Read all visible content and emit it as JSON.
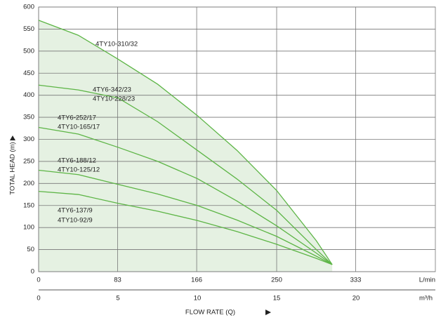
{
  "chart_data": {
    "type": "line",
    "xlabel": "FLOW RATE (Q)",
    "ylabel": "TOTAL HEAD (m)",
    "x_unit": "m³/h",
    "x2_unit": "L/min",
    "xlim": [
      0,
      25
    ],
    "xticks": [
      0,
      5,
      10,
      15,
      20
    ],
    "x2lim": [
      0,
      416.67
    ],
    "x2ticks": [
      0,
      83,
      166,
      250,
      333
    ],
    "ylim": [
      0,
      600
    ],
    "yticks": [
      0,
      50,
      100,
      150,
      200,
      250,
      300,
      350,
      400,
      450,
      500,
      550,
      600
    ],
    "grid": true,
    "area_color": "#e5f1e2",
    "x": [
      0,
      2.5,
      5,
      7.5,
      10,
      12.5,
      15,
      17.5,
      18.5
    ],
    "series": [
      {
        "labels": [
          "4TY10-310/32"
        ],
        "color": "#5db546",
        "values": [
          570,
          536,
          482,
          425,
          354,
          275,
          184,
          70,
          16
        ]
      },
      {
        "labels": [
          "4TY6-342/23",
          "4TY10-228/23"
        ],
        "color": "#5db546",
        "values": [
          423,
          412,
          394,
          340,
          275,
          210,
          139,
          50,
          16
        ]
      },
      {
        "labels": [
          "4TY6-252/17",
          "4TY10-165/17"
        ],
        "color": "#5db546",
        "values": [
          327,
          312,
          282,
          250,
          211,
          160,
          104,
          42,
          16
        ]
      },
      {
        "labels": [
          "4TY6-188/12",
          "4TY10-125/12"
        ],
        "color": "#5db546",
        "values": [
          230,
          220,
          198,
          176,
          150,
          117,
          80,
          35,
          16
        ]
      },
      {
        "labels": [
          "4TY6-137/9",
          "4TY10-92/9"
        ],
        "color": "#5db546",
        "values": [
          182,
          175,
          155,
          137,
          116,
          91,
          62,
          30,
          16
        ]
      }
    ]
  }
}
